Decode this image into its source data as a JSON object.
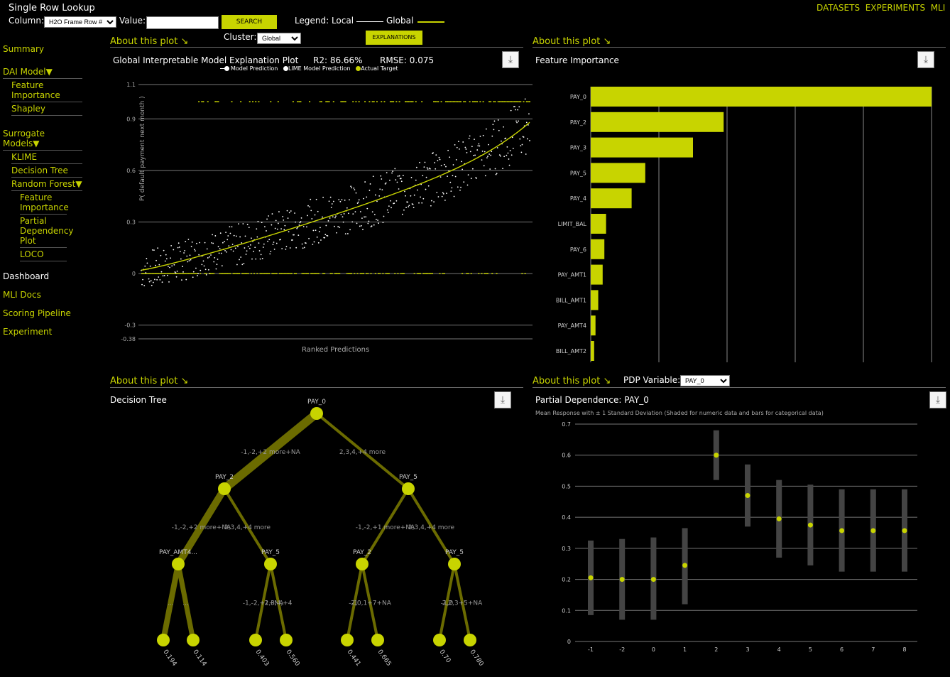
{
  "header": {
    "title": "Single Row Lookup",
    "column_label": "Column:",
    "column_value": "H2O Frame Row #",
    "value_label": "Value:",
    "value_input": "",
    "search_label": "SEARCH",
    "legend_label": "Legend: Local",
    "legend_global": "Global",
    "cluster_label": "Cluster:",
    "cluster_value": "Global",
    "explanations_label": "EXPLANATIONS",
    "nav": [
      "DATASETS",
      "EXPERIMENTS",
      "MLI"
    ]
  },
  "sidebar": {
    "summary": "Summary",
    "dai_model": "DAI Model▼",
    "dai_items": [
      "Feature Importance",
      "Shapley"
    ],
    "surrogate": "Surrogate Models▼",
    "surrogate_items": [
      "KLIME",
      "Decision Tree"
    ],
    "random_forest": "Random Forest▼",
    "rf_items": [
      "Feature Importance",
      "Partial Dependency Plot",
      "LOCO"
    ],
    "dashboard": "Dashboard",
    "mli_docs": "MLI Docs",
    "scoring": "Scoring Pipeline",
    "experiment": "Experiment"
  },
  "panels": {
    "about": "About this plot ↘",
    "global": {
      "title": "Global Interpretable Model Explanation Plot",
      "r2": "R2: 86.66%",
      "rmse": "RMSE: 0.075",
      "legend": [
        "Model Prediction",
        "LIME Model Prediction",
        "Actual Target"
      ],
      "ylabel": "P( default payment next month )",
      "xlabel": "Ranked Predictions"
    },
    "fi": {
      "title": "Feature Importance"
    },
    "tree": {
      "title": "Decision Tree"
    },
    "pdp": {
      "title": "Partial Dependence: PAY_0",
      "subtitle": "Mean Response with ± 1 Standard Deviation (Shaded for numeric data and bars for categorical data)",
      "variable_label": "PDP Variable:",
      "variable_value": "PAY_0"
    }
  },
  "colors": {
    "accent": "#c8d400",
    "tree_edge": "#6b6b00",
    "background": "#000000"
  },
  "chart_data": [
    {
      "type": "scatter",
      "ylim": [
        -0.38,
        1.1
      ],
      "yticks": [
        1.1,
        0.9,
        0.6,
        0.3,
        0,
        -0.3,
        -0.38
      ],
      "xlabel": "Ranked Predictions",
      "ylabel": "P( default payment next month )"
    },
    {
      "type": "bar",
      "orientation": "horizontal",
      "categories": [
        "PAY_0",
        "PAY_2",
        "PAY_3",
        "PAY_5",
        "PAY_4",
        "LIMIT_BAL",
        "PAY_6",
        "PAY_AMT1",
        "BILL_AMT1",
        "PAY_AMT4",
        "BILL_AMT2"
      ],
      "values": [
        1.0,
        0.39,
        0.3,
        0.16,
        0.12,
        0.045,
        0.04,
        0.035,
        0.022,
        0.014,
        0.01
      ]
    },
    {
      "type": "tree",
      "nodes": [
        {
          "id": "n0",
          "label": "PAY_0"
        },
        {
          "id": "n1",
          "label": "PAY_2"
        },
        {
          "id": "n2",
          "label": "PAY_5"
        },
        {
          "id": "n3",
          "label": "PAY_AMT4..."
        },
        {
          "id": "n4",
          "label": "PAY_5"
        },
        {
          "id": "n5",
          "label": "PAY_2"
        },
        {
          "id": "n6",
          "label": "PAY_5"
        },
        {
          "id": "l0",
          "label": "0.194"
        },
        {
          "id": "l1",
          "label": "0.114"
        },
        {
          "id": "l2",
          "label": "0.403"
        },
        {
          "id": "l3",
          "label": "0.560"
        },
        {
          "id": "l4",
          "label": "0.441"
        },
        {
          "id": "l5",
          "label": "0.665"
        },
        {
          "id": "l6",
          "label": "0.70"
        },
        {
          "id": "l7",
          "label": "0.780"
        }
      ],
      "edges": [
        {
          "from": "n0",
          "to": "n1",
          "label": "-1,-2,+2 more+NA",
          "weight": 1.0
        },
        {
          "from": "n0",
          "to": "n2",
          "label": "2,3,4,+4 more",
          "weight": 0.2
        },
        {
          "from": "n1",
          "to": "n3",
          "label": "-1,-2,+2 more+NA",
          "weight": 0.8
        },
        {
          "from": "n1",
          "to": "n4",
          "label": "2,3,4,+4 more",
          "weight": 0.2
        },
        {
          "from": "n2",
          "to": "n5",
          "label": "-1,-2,+1 more+NA",
          "weight": 0.2
        },
        {
          "from": "n2",
          "to": "n6",
          "label": "2,3,4,+4 more",
          "weight": 0.2
        },
        {
          "from": "n3",
          "to": "l0",
          "label": "...",
          "weight": 0.6
        },
        {
          "from": "n3",
          "to": "l1",
          "label": "...",
          "weight": 0.5
        },
        {
          "from": "n4",
          "to": "l2",
          "label": "-1,-2,+1+NA",
          "weight": 0.2
        },
        {
          "from": "n4",
          "to": "l3",
          "label": "2,3,4,+4",
          "weight": 0.2
        },
        {
          "from": "n5",
          "to": "l4",
          "label": "-1",
          "weight": 0.2
        },
        {
          "from": "n5",
          "to": "l5",
          "label": "-2,0,1+7+NA",
          "weight": 0.2
        },
        {
          "from": "n6",
          "to": "l6",
          "label": "-1,0",
          "weight": 0.2
        },
        {
          "from": "n6",
          "to": "l7",
          "label": "2,2,3+5+NA",
          "weight": 0.2
        }
      ]
    },
    {
      "type": "scatter",
      "title": "Partial Dependence: PAY_0",
      "categories": [
        "-1",
        "-2",
        "0",
        "1",
        "2",
        "3",
        "4",
        "5",
        "6",
        "7",
        "8"
      ],
      "values": [
        0.205,
        0.2,
        0.2,
        0.245,
        0.6,
        0.47,
        0.395,
        0.375,
        0.357,
        0.357,
        0.357
      ],
      "lower": [
        0.085,
        0.07,
        0.07,
        0.12,
        0.52,
        0.37,
        0.27,
        0.245,
        0.225,
        0.225,
        0.225
      ],
      "upper": [
        0.325,
        0.33,
        0.335,
        0.365,
        0.68,
        0.57,
        0.52,
        0.505,
        0.49,
        0.49,
        0.49
      ],
      "ylim": [
        0,
        0.7
      ],
      "yticks": [
        "0",
        "0.1",
        "0.2",
        "0.3",
        "0.4",
        "0.5",
        "0.6",
        "0.7"
      ]
    }
  ]
}
